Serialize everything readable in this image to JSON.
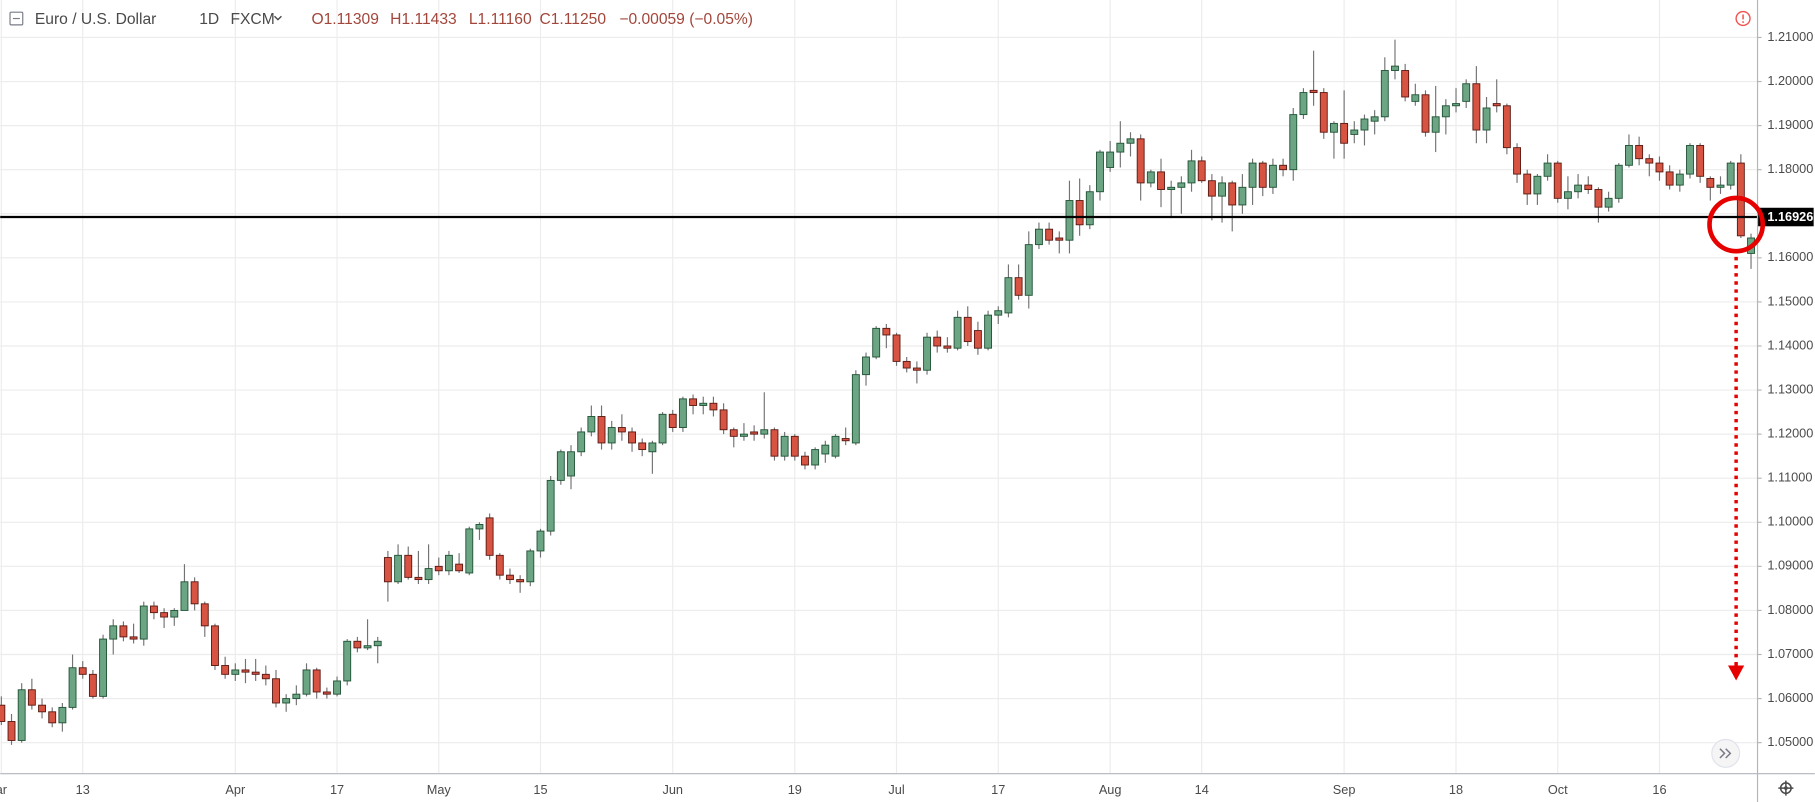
{
  "header": {
    "symbol": "Euro / U.S. Dollar",
    "interval": "1D",
    "source": "FXCM",
    "open": "O1.11309",
    "high": "H1.11433",
    "low": "L1.11160",
    "close": "C1.11250",
    "change": "−0.00059 (−0.05%)"
  },
  "chart_data": {
    "type": "candlestick",
    "categories": [
      "ar",
      null,
      null,
      null,
      null,
      null,
      null,
      null,
      "13",
      null,
      null,
      null,
      null,
      null,
      null,
      null,
      null,
      null,
      null,
      null,
      null,
      null,
      null,
      "Apr",
      null,
      null,
      null,
      null,
      null,
      null,
      null,
      null,
      null,
      "17",
      null,
      null,
      null,
      null,
      null,
      null,
      null,
      null,
      null,
      "May",
      null,
      null,
      null,
      null,
      null,
      null,
      null,
      null,
      null,
      "15",
      null,
      null,
      null,
      null,
      null,
      null,
      null,
      null,
      null,
      null,
      null,
      null,
      "Jun",
      null,
      null,
      null,
      null,
      null,
      null,
      null,
      null,
      null,
      null,
      null,
      "19",
      null,
      null,
      null,
      null,
      null,
      null,
      null,
      null,
      null,
      "Jul",
      null,
      null,
      null,
      null,
      null,
      null,
      null,
      null,
      null,
      "17",
      null,
      null,
      null,
      null,
      null,
      null,
      null,
      null,
      null,
      null,
      "Aug",
      null,
      null,
      null,
      null,
      null,
      null,
      null,
      null,
      "14",
      null,
      null,
      null,
      null,
      null,
      null,
      null,
      null,
      null,
      null,
      null,
      null,
      null,
      "Sep",
      null,
      null,
      null,
      null,
      null,
      null,
      null,
      null,
      null,
      null,
      "18",
      null,
      null,
      null,
      null,
      null,
      null,
      null,
      null,
      null,
      "Oct",
      null,
      null,
      null,
      null,
      null,
      null,
      null,
      null,
      null,
      "16",
      null,
      null,
      null,
      null,
      null,
      null,
      null,
      null,
      null
    ],
    "open": [
      1.0585,
      1.0548,
      1.0505,
      1.062,
      1.0585,
      1.057,
      1.0545,
      1.058,
      1.067,
      1.0655,
      1.0605,
      1.0735,
      1.0765,
      1.074,
      1.0735,
      1.081,
      1.0795,
      1.0785,
      1.08,
      1.0865,
      1.0815,
      1.0765,
      1.0675,
      1.0655,
      1.0665,
      1.066,
      1.0655,
      1.0645,
      1.059,
      1.06,
      1.061,
      1.0665,
      1.0615,
      1.061,
      1.064,
      1.073,
      1.0715,
      1.072,
      1.092,
      1.0865,
      1.0925,
      1.0875,
      1.087,
      1.09,
      1.089,
      1.0905,
      1.0885,
      1.0985,
      1.101,
      1.0925,
      1.088,
      1.087,
      1.0865,
      1.0935,
      1.098,
      1.1095,
      1.1105,
      1.116,
      1.1205,
      1.124,
      1.118,
      1.1215,
      1.1205,
      1.118,
      1.116,
      1.118,
      1.1245,
      1.1215,
      1.128,
      1.1265,
      1.127,
      1.1255,
      1.121,
      1.1195,
      1.1205,
      1.12,
      1.121,
      1.115,
      1.1195,
      1.115,
      1.113,
      1.1155,
      1.115,
      1.119,
      1.118,
      1.1335,
      1.1375,
      1.144,
      1.1425,
      1.1365,
      1.135,
      1.1345,
      1.142,
      1.14,
      1.1395,
      1.1465,
      1.1435,
      1.1395,
      1.147,
      1.1475,
      1.1555,
      1.1515,
      1.163,
      1.1665,
      1.1645,
      1.164,
      1.173,
      1.1675,
      1.175,
      1.1805,
      1.184,
      1.186,
      1.187,
      1.177,
      1.1795,
      1.1755,
      1.176,
      1.177,
      1.182,
      1.1775,
      1.174,
      1.177,
      1.172,
      1.176,
      1.1815,
      1.176,
      1.181,
      1.18,
      1.1925,
      1.198,
      1.1975,
      1.1885,
      1.1905,
      1.188,
      1.189,
      1.191,
      1.192,
      1.2025,
      1.2025,
      1.1955,
      1.197,
      1.1885,
      1.192,
      1.1945,
      1.1955,
      1.1995,
      1.189,
      1.195,
      1.1945,
      1.185,
      1.179,
      1.1745,
      1.1785,
      1.1815,
      1.1735,
      1.175,
      1.1765,
      1.1755,
      1.1715,
      1.1735,
      1.181,
      1.1855,
      1.1825,
      1.1815,
      1.1795,
      1.1765,
      1.179,
      1.1855,
      1.178,
      1.176,
      1.1765,
      1.1815,
      1.161
    ],
    "high": [
      1.0605,
      1.0565,
      1.0635,
      1.0645,
      1.06,
      1.058,
      1.059,
      1.07,
      1.0685,
      1.0665,
      1.0745,
      1.078,
      1.0775,
      1.077,
      1.082,
      1.082,
      1.0805,
      1.0805,
      1.0905,
      1.0875,
      1.082,
      1.077,
      1.0695,
      1.068,
      1.069,
      1.069,
      1.0675,
      1.0665,
      1.061,
      1.063,
      1.068,
      1.067,
      1.0625,
      1.065,
      1.0735,
      1.074,
      1.078,
      1.074,
      1.0935,
      1.095,
      1.0945,
      1.0935,
      1.095,
      1.092,
      1.0935,
      1.093,
      1.099,
      1.1,
      1.102,
      1.093,
      1.0895,
      1.088,
      1.094,
      1.0985,
      1.1105,
      1.1165,
      1.1175,
      1.1215,
      1.1265,
      1.1265,
      1.123,
      1.1245,
      1.1215,
      1.119,
      1.1185,
      1.125,
      1.1255,
      1.1285,
      1.129,
      1.1285,
      1.1285,
      1.127,
      1.1215,
      1.1225,
      1.122,
      1.1295,
      1.1215,
      1.1205,
      1.12,
      1.116,
      1.117,
      1.1185,
      1.12,
      1.1215,
      1.1345,
      1.1385,
      1.1445,
      1.145,
      1.143,
      1.1375,
      1.1365,
      1.143,
      1.1435,
      1.142,
      1.148,
      1.149,
      1.1455,
      1.148,
      1.149,
      1.1585,
      1.1585,
      1.166,
      1.168,
      1.168,
      1.166,
      1.1775,
      1.178,
      1.1765,
      1.1845,
      1.1865,
      1.191,
      1.1885,
      1.188,
      1.18,
      1.1825,
      1.1775,
      1.1785,
      1.1845,
      1.183,
      1.179,
      1.1785,
      1.1775,
      1.179,
      1.1825,
      1.182,
      1.1825,
      1.1825,
      1.194,
      1.1985,
      1.207,
      1.1985,
      1.191,
      1.198,
      1.191,
      1.1925,
      1.1935,
      1.2055,
      1.2095,
      1.204,
      1.1995,
      1.198,
      1.199,
      1.196,
      1.1985,
      1.2005,
      1.2035,
      1.1965,
      1.2005,
      1.195,
      1.186,
      1.18,
      1.179,
      1.1835,
      1.182,
      1.1785,
      1.179,
      1.1785,
      1.176,
      1.175,
      1.1815,
      1.188,
      1.1875,
      1.1835,
      1.183,
      1.181,
      1.18,
      1.186,
      1.186,
      1.1785,
      1.1785,
      1.182,
      1.1835,
      1.1655
    ],
    "low": [
      1.054,
      1.0495,
      1.05,
      1.0575,
      1.0555,
      1.0535,
      1.0525,
      1.0575,
      1.0645,
      1.06,
      1.06,
      1.07,
      1.073,
      1.0725,
      1.072,
      1.078,
      1.076,
      1.0765,
      1.08,
      1.08,
      1.074,
      1.0665,
      1.0645,
      1.064,
      1.0635,
      1.064,
      1.063,
      1.058,
      1.057,
      1.0585,
      1.0605,
      1.06,
      1.06,
      1.0605,
      1.063,
      1.0705,
      1.071,
      1.068,
      1.082,
      1.086,
      1.087,
      1.086,
      1.086,
      1.088,
      1.088,
      1.0885,
      1.088,
      1.096,
      1.0915,
      1.087,
      1.086,
      1.084,
      1.0855,
      1.092,
      1.097,
      1.1085,
      1.1075,
      1.115,
      1.1195,
      1.1165,
      1.1165,
      1.1185,
      1.116,
      1.115,
      1.111,
      1.1175,
      1.1205,
      1.1205,
      1.1245,
      1.1245,
      1.124,
      1.12,
      1.117,
      1.1185,
      1.1185,
      1.119,
      1.114,
      1.114,
      1.114,
      1.112,
      1.112,
      1.1135,
      1.1145,
      1.1175,
      1.1175,
      1.131,
      1.137,
      1.1395,
      1.1355,
      1.134,
      1.1315,
      1.1335,
      1.1385,
      1.1385,
      1.139,
      1.14,
      1.138,
      1.139,
      1.145,
      1.1465,
      1.1505,
      1.1485,
      1.162,
      1.163,
      1.161,
      1.161,
      1.165,
      1.1665,
      1.173,
      1.1795,
      1.1805,
      1.183,
      1.173,
      1.176,
      1.1715,
      1.169,
      1.17,
      1.175,
      1.177,
      1.1685,
      1.168,
      1.166,
      1.17,
      1.172,
      1.174,
      1.1745,
      1.1785,
      1.1775,
      1.1915,
      1.1945,
      1.187,
      1.1825,
      1.1825,
      1.186,
      1.1855,
      1.188,
      1.191,
      1.2005,
      1.1955,
      1.1945,
      1.1875,
      1.184,
      1.188,
      1.193,
      1.194,
      1.186,
      1.186,
      1.193,
      1.1835,
      1.177,
      1.172,
      1.172,
      1.1775,
      1.1725,
      1.171,
      1.1735,
      1.1745,
      1.168,
      1.1705,
      1.1725,
      1.1805,
      1.181,
      1.1785,
      1.1775,
      1.1755,
      1.175,
      1.178,
      1.177,
      1.173,
      1.1745,
      1.1755,
      1.1645,
      1.1575
    ],
    "close": [
      1.0548,
      1.0505,
      1.062,
      1.0585,
      1.057,
      1.0545,
      1.058,
      1.067,
      1.0655,
      1.0605,
      1.0735,
      1.0765,
      1.074,
      1.0735,
      1.081,
      1.0795,
      1.0785,
      1.08,
      1.0865,
      1.0815,
      1.0765,
      1.0675,
      1.0655,
      1.0665,
      1.066,
      1.0655,
      1.0645,
      1.059,
      1.06,
      1.061,
      1.0665,
      1.0615,
      1.061,
      1.064,
      1.073,
      1.0715,
      1.072,
      1.073,
      1.0865,
      1.0925,
      1.0875,
      1.087,
      1.0895,
      1.089,
      1.0925,
      1.089,
      1.0985,
      1.0995,
      1.0925,
      1.088,
      1.087,
      1.0865,
      1.0935,
      1.098,
      1.1095,
      1.116,
      1.116,
      1.1205,
      1.124,
      1.118,
      1.1215,
      1.1205,
      1.118,
      1.1165,
      1.118,
      1.1245,
      1.1215,
      1.128,
      1.1265,
      1.127,
      1.1255,
      1.121,
      1.1195,
      1.12,
      1.12,
      1.121,
      1.115,
      1.1195,
      1.115,
      1.113,
      1.1165,
      1.1175,
      1.1195,
      1.1185,
      1.1335,
      1.1375,
      1.144,
      1.1425,
      1.1365,
      1.135,
      1.1345,
      1.142,
      1.14,
      1.1395,
      1.1465,
      1.141,
      1.1395,
      1.147,
      1.148,
      1.1555,
      1.1515,
      1.163,
      1.1665,
      1.164,
      1.164,
      1.173,
      1.1675,
      1.175,
      1.184,
      1.184,
      1.186,
      1.187,
      1.177,
      1.1795,
      1.1755,
      1.176,
      1.177,
      1.182,
      1.1775,
      1.174,
      1.177,
      1.172,
      1.176,
      1.1815,
      1.176,
      1.181,
      1.18,
      1.1925,
      1.1975,
      1.1975,
      1.1885,
      1.1905,
      1.186,
      1.189,
      1.1915,
      1.192,
      1.2025,
      1.2035,
      1.1965,
      1.197,
      1.1885,
      1.192,
      1.1945,
      1.195,
      1.1995,
      1.189,
      1.194,
      1.1945,
      1.185,
      1.179,
      1.1745,
      1.1785,
      1.1815,
      1.1735,
      1.175,
      1.1765,
      1.1755,
      1.1715,
      1.1735,
      1.181,
      1.1855,
      1.1825,
      1.1815,
      1.1795,
      1.1765,
      1.179,
      1.1855,
      1.1785,
      1.176,
      1.1765,
      1.1815,
      1.165,
      1.1645
    ],
    "up_color": "#6ba583",
    "down_color": "#d75442",
    "up_border": "#225437",
    "down_border": "#5b1a13",
    "wick_color": "#737375",
    "ylim": [
      1.0431,
      1.2185
    ],
    "yticks": [
      {
        "value": 1.05,
        "label": "1.05000"
      },
      {
        "value": 1.06,
        "label": "1.06000"
      },
      {
        "value": 1.07,
        "label": "1.07000"
      },
      {
        "value": 1.08,
        "label": "1.08000"
      },
      {
        "value": 1.09,
        "label": "1.09000"
      },
      {
        "value": 1.1,
        "label": "1.10000"
      },
      {
        "value": 1.11,
        "label": "1.11000"
      },
      {
        "value": 1.12,
        "label": "1.12000"
      },
      {
        "value": 1.13,
        "label": "1.13000"
      },
      {
        "value": 1.14,
        "label": "1.14000"
      },
      {
        "value": 1.15,
        "label": "1.15000"
      },
      {
        "value": 1.16,
        "label": "1.16000"
      },
      {
        "value": 1.17,
        "label": "1.17000"
      },
      {
        "value": 1.18,
        "label": "1.18000"
      },
      {
        "value": 1.19,
        "label": "1.19000"
      },
      {
        "value": 1.2,
        "label": "1.20000"
      },
      {
        "value": 1.21,
        "label": "1.21000"
      }
    ],
    "grid": true,
    "hline": {
      "value": 1.16926,
      "label": "1.16926"
    }
  }
}
